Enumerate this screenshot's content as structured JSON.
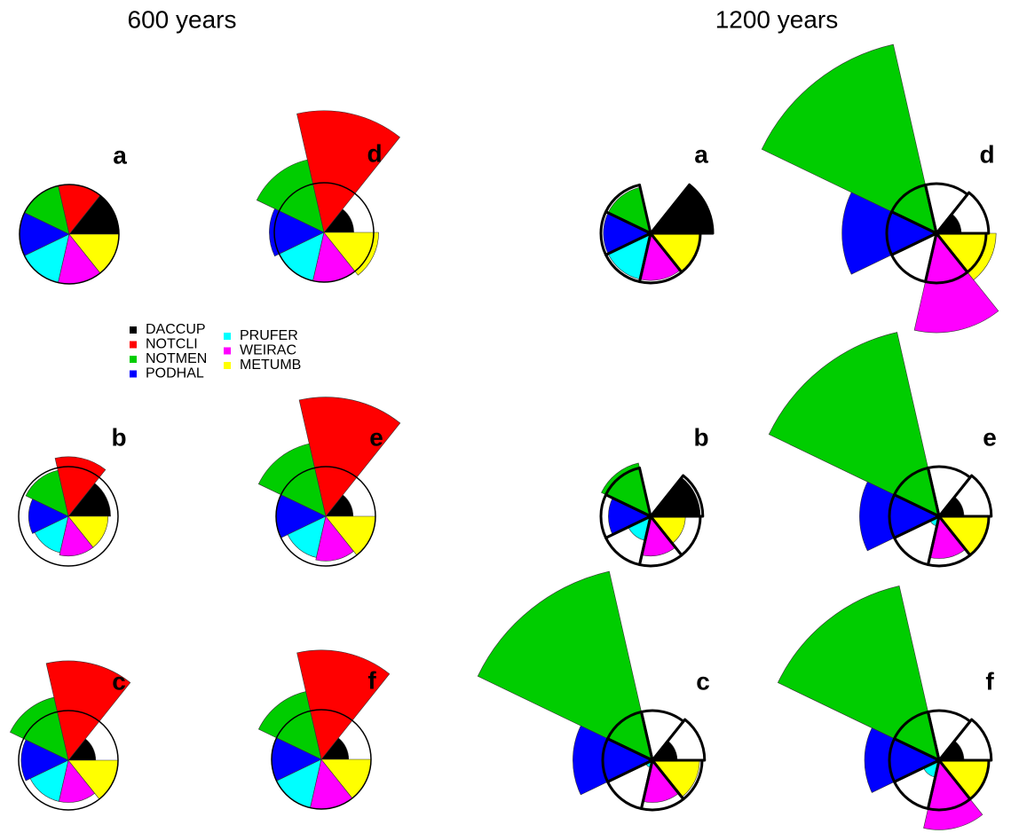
{
  "headers": [
    "600 years",
    "1200 years"
  ],
  "legend": {
    "names": [
      "DACCUP",
      "NOTCLI",
      "NOTMEN",
      "PODHAL",
      "PRUFER",
      "WEIRAC",
      "METUMB"
    ],
    "colors": [
      "#000000",
      "#ff0000",
      "#00cd00",
      "#0000ff",
      "#00ffff",
      "#ff00ff",
      "#ffff00"
    ]
  },
  "chart_data": [
    {
      "type": "rose",
      "title": "a",
      "values": [
        1,
        1,
        1,
        1,
        1,
        1,
        1
      ]
    },
    {
      "type": "rose",
      "title": "d",
      "values": [
        0.6,
        2.45,
        1.5,
        1.1,
        1.0,
        1.0,
        1.1
      ]
    },
    {
      "type": "rose",
      "title": "b",
      "values": [
        0.85,
        1.2,
        0.95,
        0.8,
        0.75,
        0.8,
        0.8
      ]
    },
    {
      "type": "rose",
      "title": "e",
      "values": [
        0.55,
        2.4,
        1.5,
        1.0,
        0.85,
        0.9,
        1.0
      ]
    },
    {
      "type": "rose",
      "title": "c",
      "values": [
        0.55,
        2.0,
        1.3,
        0.95,
        0.85,
        0.85,
        1.0
      ]
    },
    {
      "type": "rose",
      "title": "f",
      "values": [
        0.55,
        2.2,
        1.4,
        1.0,
        1.0,
        1.0,
        1.0
      ]
    },
    {
      "type": "rose",
      "title": "a",
      "values": [
        1.25,
        0,
        0.95,
        0.95,
        0.95,
        0.95,
        1.0
      ],
      "outline": [
        1.25,
        0,
        1,
        1,
        1,
        1,
        1
      ]
    },
    {
      "type": "rose",
      "title": "d",
      "values": [
        0.5,
        0,
        3.9,
        1.9,
        0,
        2.0,
        1.2
      ],
      "outline": [
        1.05,
        1,
        1,
        1,
        1,
        1,
        1
      ]
    },
    {
      "type": "rose",
      "title": "b",
      "values": [
        1.0,
        0,
        1.1,
        0.85,
        0.5,
        0.8,
        0.7
      ],
      "outline": [
        1.05,
        0,
        1,
        1,
        1,
        1,
        1
      ]
    },
    {
      "type": "rose",
      "title": "e",
      "values": [
        0.5,
        0,
        3.8,
        1.6,
        0.2,
        0.85,
        1.0
      ],
      "outline": [
        1.05,
        1,
        1,
        1,
        1,
        1,
        1
      ]
    },
    {
      "type": "rose",
      "title": "c",
      "values": [
        0.5,
        0,
        3.9,
        1.6,
        0.15,
        0.85,
        0.95
      ],
      "outline": [
        1.05,
        1,
        1,
        1,
        1,
        1,
        1
      ]
    },
    {
      "type": "rose",
      "title": "f",
      "values": [
        0.5,
        0,
        3.6,
        1.5,
        0.35,
        1.4,
        1.0
      ],
      "outline": [
        1.05,
        1,
        1,
        1,
        1,
        1,
        1
      ]
    }
  ]
}
